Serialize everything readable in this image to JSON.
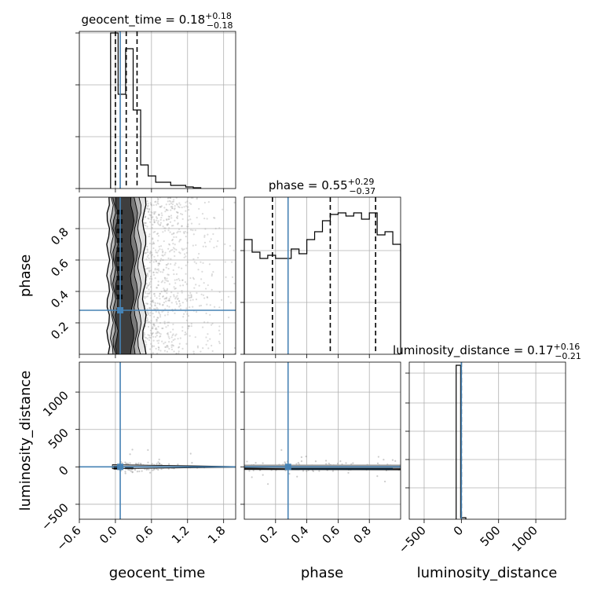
{
  "chart_data": {
    "type": "corner",
    "parameters": [
      "geocent_time",
      "phase",
      "luminosity_distance"
    ],
    "truths": {
      "geocent_time": 0.08,
      "phase": 0.28,
      "luminosity_distance": 0.0
    },
    "panels": [
      {
        "id": "hist-geocent_time",
        "kind": "histogram",
        "param": "geocent_time",
        "title_main": "geocent_time = 0.18",
        "title_plus": "+0.18",
        "title_minus": "−0.18",
        "xlim": [
          -0.6,
          2.0
        ],
        "ylim": [
          0,
          1
        ],
        "xticks": [
          -0.6,
          0.0,
          0.6,
          1.2,
          1.8
        ],
        "quantiles": [
          0.0,
          0.18,
          0.36
        ],
        "bin_edges": [
          -0.08,
          0.045,
          0.17,
          0.295,
          0.42,
          0.545,
          0.67,
          0.795,
          0.92,
          1.045,
          1.17,
          1.295,
          1.42
        ],
        "bin_heights": [
          0.99,
          0.6,
          0.89,
          0.5,
          0.15,
          0.08,
          0.04,
          0.04,
          0.02,
          0.02,
          0.01,
          0.005
        ]
      },
      {
        "id": "hist-phase",
        "kind": "histogram",
        "param": "phase",
        "title_main": "phase = 0.55",
        "title_plus": "+0.29",
        "title_minus": "−0.37",
        "xlim": [
          0.0,
          1.0
        ],
        "ylim": [
          0,
          1
        ],
        "xticks": [
          0.2,
          0.4,
          0.6,
          0.8
        ],
        "quantiles": [
          0.18,
          0.55,
          0.84
        ],
        "bin_edges": [
          0.0,
          0.05,
          0.1,
          0.15,
          0.2,
          0.25,
          0.3,
          0.35,
          0.4,
          0.45,
          0.5,
          0.55,
          0.6,
          0.65,
          0.7,
          0.75,
          0.8,
          0.85,
          0.9,
          0.95,
          1.0
        ],
        "bin_heights": [
          0.73,
          0.65,
          0.61,
          0.63,
          0.61,
          0.61,
          0.67,
          0.64,
          0.73,
          0.78,
          0.85,
          0.89,
          0.9,
          0.88,
          0.9,
          0.86,
          0.9,
          0.76,
          0.78,
          0.7
        ]
      },
      {
        "id": "hist-luminosity_distance",
        "kind": "histogram",
        "param": "luminosity_distance",
        "title_main": "luminosity_distance = 0.17",
        "title_plus": "+0.16",
        "title_minus": "−0.21",
        "xlim": [
          -700,
          1400
        ],
        "ylim": [
          0,
          1
        ],
        "xticks": [
          -500,
          0,
          500,
          1000
        ],
        "quantiles": [
          0
        ],
        "bin_edges": [
          -70,
          -10,
          60
        ],
        "bin_heights": [
          0.98,
          0.01
        ]
      },
      {
        "id": "scatter-geocent_time-phase",
        "kind": "2d",
        "x": "geocent_time",
        "y": "phase",
        "xlim": [
          -0.6,
          2.0
        ],
        "ylim": [
          0.0,
          1.0
        ],
        "yticks": [
          0.2,
          0.4,
          0.6,
          0.8
        ]
      },
      {
        "id": "scatter-geocent_time-luminosity_distance",
        "kind": "2d",
        "x": "geocent_time",
        "y": "luminosity_distance",
        "xlim": [
          -0.6,
          2.0
        ],
        "ylim": [
          -700,
          1400
        ],
        "xticks": [
          -0.6,
          0.0,
          0.6,
          1.2,
          1.8
        ],
        "yticks": [
          -500,
          0,
          500,
          1000
        ]
      },
      {
        "id": "scatter-phase-luminosity_distance",
        "kind": "2d",
        "x": "phase",
        "y": "luminosity_distance",
        "xlim": [
          0.0,
          1.0
        ],
        "ylim": [
          -700,
          1400
        ],
        "xticks": [
          0.2,
          0.4,
          0.6,
          0.8
        ]
      }
    ],
    "tick_labels": {
      "geocent_time": [
        "−0.6",
        "0.0",
        "0.6",
        "1.2",
        "1.8"
      ],
      "phase_x": [
        "0.2",
        "0.4",
        "0.6",
        "0.8"
      ],
      "phase_y": [
        "0.2",
        "0.4",
        "0.6",
        "0.8"
      ],
      "luminosity_distance_x": [
        "−500",
        "0",
        "500",
        "1000"
      ],
      "luminosity_distance_y": [
        "−500",
        "0",
        "500",
        "1000"
      ]
    },
    "axis_labels": {
      "x": [
        "geocent_time",
        "phase",
        "luminosity_distance"
      ],
      "y": [
        "phase",
        "luminosity_distance"
      ]
    },
    "grid": true,
    "colors": {
      "truth": "#4682b4",
      "hist": "#000000",
      "points": "#9a9a9a",
      "contour_dark": "#000000"
    }
  }
}
